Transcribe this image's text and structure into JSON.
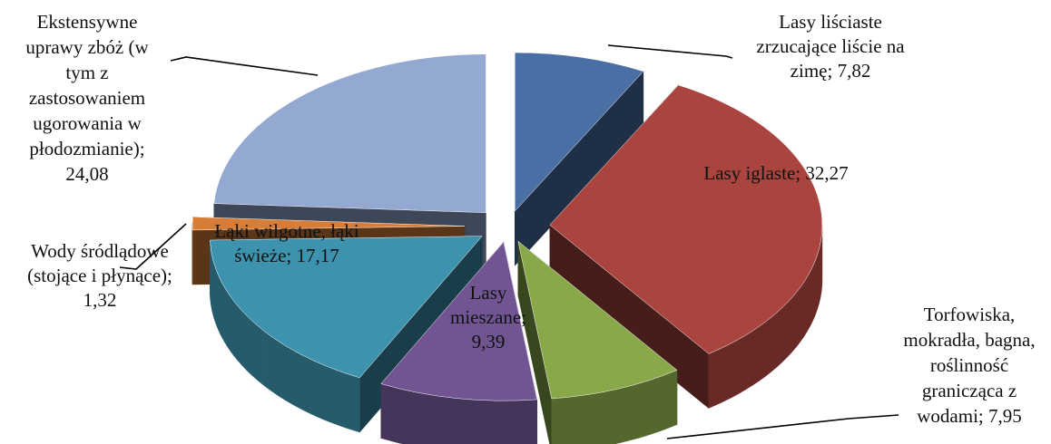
{
  "chart_data": {
    "type": "pie",
    "title": "",
    "three_d": true,
    "exploded": true,
    "data_labels": "category; value",
    "decimal_separator": ",",
    "slices": [
      {
        "label": "Lasy liściaste zrzucające liście na zimę",
        "value": 7.82,
        "value_text": "7,82",
        "color": "#4a6fa5",
        "label_lines": [
          "Lasy liściaste",
          "zrzucające liście na",
          "zimę; 7,82"
        ]
      },
      {
        "label": "Lasy iglaste",
        "value": 32.27,
        "value_text": "32,27",
        "color": "#a9443f",
        "label_lines": [
          "Lasy iglaste; 32,27"
        ]
      },
      {
        "label": "Torfowiska, mokradła, bagna, roślinność granicząca z wodami",
        "value": 7.95,
        "value_text": "7,95",
        "color": "#88a84a",
        "label_lines": [
          "Torfowiska,",
          "mokradła, bagna,",
          "roślinność",
          "granicząca z",
          "wodami; 7,95"
        ]
      },
      {
        "label": "Lasy mieszane",
        "value": 9.39,
        "value_text": "9,39",
        "color": "#705592",
        "label_lines": [
          "Lasy",
          "mieszane;",
          "9,39"
        ]
      },
      {
        "label": "Łąki wilgotne, łąki świeże",
        "value": 17.17,
        "value_text": "17,17",
        "color": "#3d93ad",
        "label_lines": [
          "Łąki wilgotne, łąki",
          "świeże; 17,17"
        ]
      },
      {
        "label": "Wody śródlądowe (stojące i płynące)",
        "value": 1.32,
        "value_text": "1,32",
        "color": "#d87d37",
        "label_lines": [
          "Wody śródlądowe",
          "(stojące i płynące);",
          "1,32"
        ]
      },
      {
        "label": "Ekstensywne uprawy zbóż (w tym z zastosowaniem ugorowania w płodozmianie)",
        "value": 24.08,
        "value_text": "24,08",
        "color": "#93a9d1",
        "label_lines": [
          "Ekstensywne",
          "uprawy zbóż (w",
          "tym z",
          "zastosowaniem",
          "ugorowania w",
          "płodozmianie);",
          "24,08"
        ]
      }
    ]
  }
}
